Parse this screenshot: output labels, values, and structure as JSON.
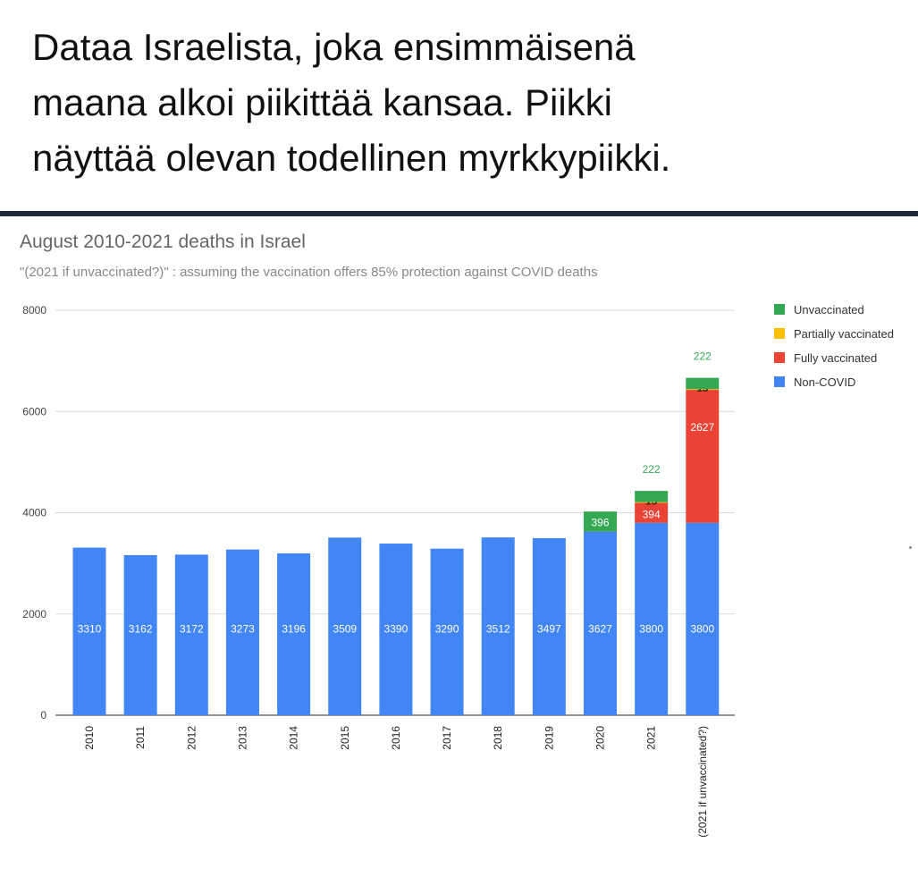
{
  "post": {
    "caption_lines": [
      "Dataa Israelista, joka ensimmäisenä",
      "maana alkoi piikittää kansaa. Piikki",
      "näyttää olevan todellinen myrkkypiikki."
    ]
  },
  "chart_data": {
    "type": "bar",
    "stacked": true,
    "title": "August 2010-2021 deaths in Israel",
    "subtitle": "\"(2021 if unvaccinated?)\" : assuming the vaccination offers 85% protection against COVID deaths",
    "categories": [
      "2010",
      "2011",
      "2012",
      "2013",
      "2014",
      "2015",
      "2016",
      "2017",
      "2018",
      "2019",
      "2020",
      "2021",
      "(2021 if unvaccinated?)"
    ],
    "series": [
      {
        "name": "Non-COVID",
        "color": "#4285f4",
        "values": [
          3310,
          3162,
          3172,
          3273,
          3196,
          3509,
          3390,
          3290,
          3512,
          3497,
          3627,
          3800,
          3800
        ]
      },
      {
        "name": "Fully vaccinated",
        "color": "#ea4335",
        "values": [
          0,
          0,
          0,
          0,
          0,
          0,
          0,
          0,
          0,
          0,
          0,
          394,
          2627
        ]
      },
      {
        "name": "Partially vaccinated",
        "color": "#fbbc04",
        "values": [
          0,
          0,
          0,
          0,
          0,
          0,
          0,
          0,
          0,
          0,
          0,
          15,
          15
        ]
      },
      {
        "name": "Unvaccinated",
        "color": "#34a853",
        "values": [
          0,
          0,
          0,
          0,
          0,
          0,
          0,
          0,
          0,
          0,
          396,
          222,
          222
        ]
      }
    ],
    "legend_order": [
      "Unvaccinated",
      "Partially vaccinated",
      "Fully vaccinated",
      "Non-COVID"
    ],
    "legend_position": "top-right",
    "yticks": [
      0,
      2000,
      4000,
      6000,
      8000
    ],
    "ylim": [
      0,
      8000
    ],
    "grid": true,
    "xlabel": "",
    "ylabel": ""
  }
}
